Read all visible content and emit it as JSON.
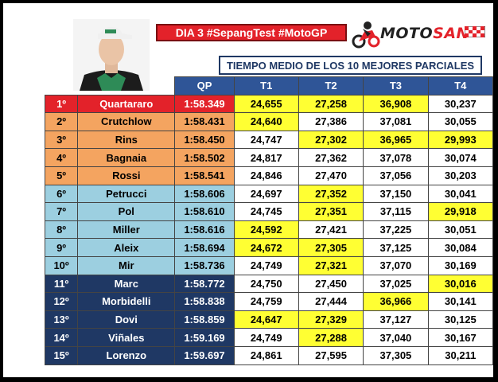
{
  "title": "DIA 3 #SepangTest #MotoGP",
  "logo": {
    "part1": "MOTO",
    "part2": "SAN"
  },
  "subheader": "TIEMPO MEDIO DE LOS 10 MEJORES PARCIALES",
  "columns": {
    "qp": "QP",
    "t1": "T1",
    "t2": "T2",
    "t3": "T3",
    "t4": "T4"
  },
  "colors": {
    "red": "#e3222a",
    "orange": "#f4a460",
    "light_blue": "#9ccfe0",
    "dark_blue": "#1f3864",
    "highlight": "#ffff33"
  },
  "rows": [
    {
      "pos": "1º",
      "name": "Quartararo",
      "qp": "1:58.349",
      "t1": "24,655",
      "t2": "27,258",
      "t3": "36,908",
      "t4": "30,237",
      "group": "red",
      "hl": [
        1,
        1,
        1,
        0
      ]
    },
    {
      "pos": "2º",
      "name": "Crutchlow",
      "qp": "1:58.431",
      "t1": "24,640",
      "t2": "27,386",
      "t3": "37,081",
      "t4": "30,055",
      "group": "orange",
      "hl": [
        1,
        0,
        0,
        0
      ]
    },
    {
      "pos": "3º",
      "name": "Rins",
      "qp": "1:58.450",
      "t1": "24,747",
      "t2": "27,302",
      "t3": "36,965",
      "t4": "29,993",
      "group": "orange",
      "hl": [
        0,
        1,
        1,
        1
      ]
    },
    {
      "pos": "4º",
      "name": "Bagnaia",
      "qp": "1:58.502",
      "t1": "24,817",
      "t2": "27,362",
      "t3": "37,078",
      "t4": "30,074",
      "group": "orange",
      "hl": [
        0,
        0,
        0,
        0
      ]
    },
    {
      "pos": "5º",
      "name": "Rossi",
      "qp": "1:58.541",
      "t1": "24,846",
      "t2": "27,470",
      "t3": "37,056",
      "t4": "30,203",
      "group": "orange",
      "hl": [
        0,
        0,
        0,
        0
      ]
    },
    {
      "pos": "6º",
      "name": "Petrucci",
      "qp": "1:58.606",
      "t1": "24,697",
      "t2": "27,352",
      "t3": "37,150",
      "t4": "30,041",
      "group": "lblue",
      "hl": [
        0,
        1,
        0,
        0
      ]
    },
    {
      "pos": "7º",
      "name": "Pol",
      "qp": "1:58.610",
      "t1": "24,745",
      "t2": "27,351",
      "t3": "37,115",
      "t4": "29,918",
      "group": "lblue",
      "hl": [
        0,
        1,
        0,
        1
      ]
    },
    {
      "pos": "8º",
      "name": "Miller",
      "qp": "1:58.616",
      "t1": "24,592",
      "t2": "27,421",
      "t3": "37,225",
      "t4": "30,051",
      "group": "lblue",
      "hl": [
        1,
        0,
        0,
        0
      ]
    },
    {
      "pos": "9º",
      "name": "Aleix",
      "qp": "1:58.694",
      "t1": "24,672",
      "t2": "27,305",
      "t3": "37,125",
      "t4": "30,084",
      "group": "lblue",
      "hl": [
        1,
        1,
        0,
        0
      ]
    },
    {
      "pos": "10º",
      "name": "Mir",
      "qp": "1:58.736",
      "t1": "24,749",
      "t2": "27,321",
      "t3": "37,070",
      "t4": "30,169",
      "group": "lblue",
      "hl": [
        0,
        1,
        0,
        0
      ]
    },
    {
      "pos": "11º",
      "name": "Marc",
      "qp": "1:58.772",
      "t1": "24,750",
      "t2": "27,450",
      "t3": "37,025",
      "t4": "30,016",
      "group": "dblue",
      "hl": [
        0,
        0,
        0,
        1
      ]
    },
    {
      "pos": "12º",
      "name": "Morbidelli",
      "qp": "1:58.838",
      "t1": "24,759",
      "t2": "27,444",
      "t3": "36,966",
      "t4": "30,141",
      "group": "dblue",
      "hl": [
        0,
        0,
        1,
        0
      ]
    },
    {
      "pos": "13º",
      "name": "Dovi",
      "qp": "1:58.859",
      "t1": "24,647",
      "t2": "27,329",
      "t3": "37,127",
      "t4": "30,125",
      "group": "dblue",
      "hl": [
        1,
        1,
        0,
        0
      ]
    },
    {
      "pos": "14º",
      "name": "Viñales",
      "qp": "1:59.169",
      "t1": "24,749",
      "t2": "27,288",
      "t3": "37,040",
      "t4": "30,167",
      "group": "dblue",
      "hl": [
        0,
        1,
        0,
        0
      ]
    },
    {
      "pos": "15º",
      "name": "Lorenzo",
      "qp": "1:59.697",
      "t1": "24,861",
      "t2": "27,595",
      "t3": "37,305",
      "t4": "30,211",
      "group": "dblue",
      "hl": [
        0,
        0,
        0,
        0
      ]
    }
  ]
}
